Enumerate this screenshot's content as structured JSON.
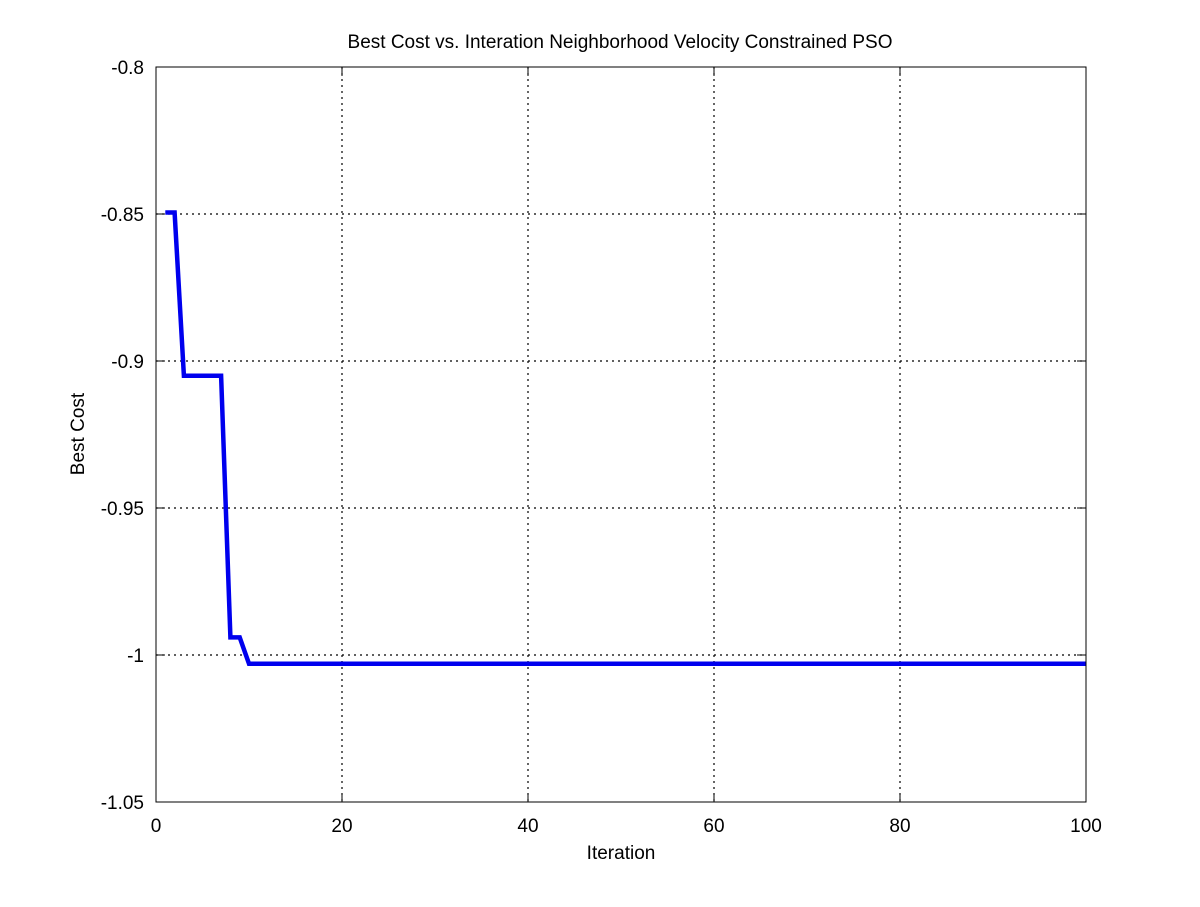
{
  "chart_data": {
    "type": "line",
    "title": "Best Cost vs. Interation Neighborhood Velocity Constrained PSO",
    "xlabel": "Iteration",
    "ylabel": "Best Cost",
    "xlim": [
      0,
      100
    ],
    "ylim": [
      -1.05,
      -0.8
    ],
    "xticks": [
      0,
      20,
      40,
      60,
      80,
      100
    ],
    "xtick_labels": [
      "0",
      "20",
      "40",
      "60",
      "80",
      "100"
    ],
    "yticks": [
      -1.05,
      -1,
      -0.95,
      -0.9,
      -0.85,
      -0.8
    ],
    "ytick_labels": [
      "-1.05",
      "-1",
      "-0.95",
      "-0.9",
      "-0.85",
      "-0.8"
    ],
    "grid": true,
    "grid_style": "dotted",
    "line_color": "#0000ee",
    "series": [
      {
        "x": [
          1,
          2,
          3,
          4,
          5,
          6,
          7,
          8,
          9,
          10,
          20,
          30,
          40,
          50,
          60,
          70,
          80,
          90,
          100
        ],
        "y": [
          -0.8495,
          -0.8495,
          -0.905,
          -0.905,
          -0.905,
          -0.905,
          -0.905,
          -0.994,
          -0.994,
          -1.003,
          -1.003,
          -1.003,
          -1.003,
          -1.003,
          -1.003,
          -1.003,
          -1.003,
          -1.003,
          -1.003
        ]
      }
    ]
  }
}
